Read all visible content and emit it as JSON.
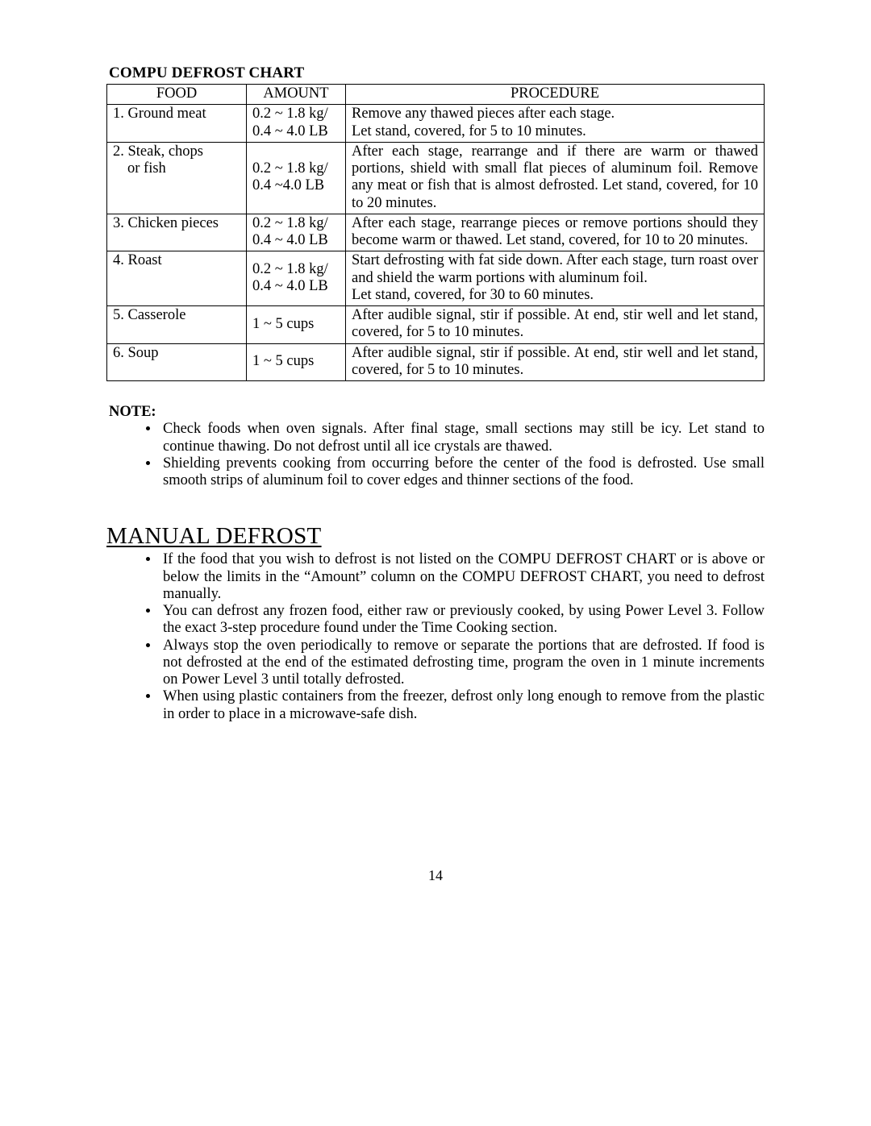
{
  "chartTitle": "COMPU DEFROST CHART",
  "columns": {
    "food": "FOOD",
    "amount": "AMOUNT",
    "procedure": "PROCEDURE"
  },
  "rows": [
    {
      "food": "1. Ground meat",
      "foodSub": "",
      "amount": "0.2 ~ 1.8 kg/\n0.4 ~ 4.0 LB",
      "amountVAlign": "top",
      "procedure": "Remove any thawed pieces after each stage.\nLet stand, covered, for 5 to 10 minutes."
    },
    {
      "food": "2. Steak, chops",
      "foodSub": "or fish",
      "amount": "\n0.2 ~ 1.8 kg/\n0.4 ~4.0 LB",
      "amountVAlign": "top",
      "procedure": "After each stage, rearrange and if there are warm or thawed portions, shield with small flat pieces of aluminum foil. Remove any meat or fish that is almost defrosted. Let stand, covered, for 10 to 20 minutes."
    },
    {
      "food": "3. Chicken pieces",
      "foodSub": "",
      "amount": "0.2 ~ 1.8 kg/\n0.4 ~ 4.0 LB",
      "amountVAlign": "top",
      "procedure": "After each stage, rearrange pieces or remove portions should they become warm or thawed. Let stand, covered, for 10 to 20 minutes."
    },
    {
      "food": "4. Roast",
      "foodSub": "",
      "amount": "0.2 ~ 1.8 kg/\n0.4 ~ 4.0 LB",
      "amountVAlign": "middle",
      "procedure": "Start defrosting with fat side down. After each stage, turn roast over and shield the warm portions with aluminum foil.\nLet stand, covered, for 30 to 60 minutes."
    },
    {
      "food": "5. Casserole",
      "foodSub": "",
      "amount": "1 ~ 5 cups",
      "amountVAlign": "middle",
      "procedure": "After audible signal, stir if possible. At end, stir well and let stand, covered, for 5 to 10 minutes."
    },
    {
      "food": "6. Soup",
      "foodSub": "",
      "amount": "1 ~ 5 cups",
      "amountVAlign": "middle",
      "procedure": "After audible signal, stir if possible. At end, stir well and let stand, covered, for 5 to 10 minutes."
    }
  ],
  "noteHeading": "NOTE:",
  "notes": [
    "Check foods when oven signals. After final stage, small sections may still be icy. Let stand to continue thawing. Do not defrost until all ice crystals are thawed.",
    "Shielding prevents cooking from occurring before the center of the food is defrosted. Use small smooth strips of aluminum foil to cover edges and thinner sections of the food."
  ],
  "manualTitle": "MANUAL DEFROST",
  "manualItems": [
    "If the food that you wish to defrost is not listed on the COMPU DEFROST CHART or is above or below the limits in the “Amount” column on the COMPU DEFROST CHART, you need to defrost manually.",
    "You can defrost any frozen food, either raw or previously cooked, by using Power Level 3. Follow the exact 3-step procedure found under the Time Cooking section.",
    "Always stop the oven periodically to remove or separate the portions that are defrosted. If food is not defrosted at the end of the estimated defrosting time, program the oven in 1 minute increments on Power Level 3 until totally defrosted.",
    "When using plastic containers from the freezer, defrost only long enough to remove from the plastic in order to place in a microwave-safe dish."
  ],
  "pageNumber": "14"
}
